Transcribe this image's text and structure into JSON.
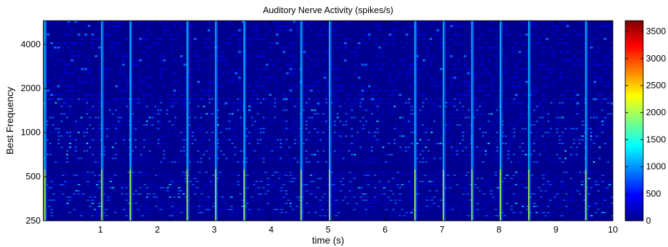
{
  "chart_data": {
    "type": "heatmap",
    "title": "Auditory Nerve Activity (spikes/s)",
    "xlabel": "time (s)",
    "ylabel": "Best  Frequency",
    "xlim": [
      0,
      10
    ],
    "ylim": [
      250,
      5800
    ],
    "yscale": "log",
    "x_ticks": [
      1,
      2,
      3,
      4,
      5,
      6,
      7,
      8,
      9,
      10
    ],
    "y_ticks": [
      250,
      500,
      1000,
      2000,
      4000
    ],
    "colorbar": {
      "range": [
        0,
        3700
      ],
      "ticks": [
        0,
        500,
        1000,
        1500,
        2000,
        2500,
        3000,
        3500
      ],
      "colormap": "jet"
    },
    "onsets_s": [
      0.0,
      1.0,
      1.5,
      2.5,
      3.0,
      3.5,
      4.5,
      5.0,
      6.5,
      7.0,
      7.5,
      8.0,
      8.5,
      9.5
    ],
    "colors": {
      "background": "#00008f",
      "low": "#0000d0",
      "mid": "#0060ff",
      "high": "#00d0ff",
      "peak": "#ffff00"
    }
  }
}
